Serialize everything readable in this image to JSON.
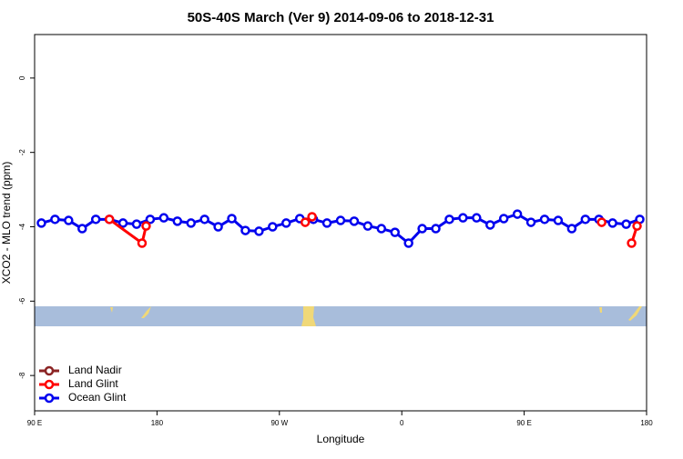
{
  "chart_data": {
    "type": "line",
    "title": "50S-40S March (Ver 9)   2014-09-06 to 2018-12-31",
    "x_label": "Longitude",
    "y_label": "XCO2 - MLO trend (ppm)",
    "xlim": [
      90,
      540
    ],
    "ylim": [
      -8.95,
      1.17
    ],
    "xticks": [
      {
        "value": 90,
        "label": "90 E"
      },
      {
        "value": 180,
        "label": "180"
      },
      {
        "value": 270,
        "label": "90 W"
      },
      {
        "value": 360,
        "label": "0"
      },
      {
        "value": 450,
        "label": "90 E"
      },
      {
        "value": 540,
        "label": "180"
      }
    ],
    "yticks": [
      0,
      -2,
      -4,
      -6,
      -8
    ],
    "legend": "bottom-left",
    "series": [
      {
        "name": "Land Nadir",
        "color": "#8b2323",
        "x": [],
        "values": []
      },
      {
        "name": "Land Glint",
        "color": "#ff0000",
        "x": [
          145,
          169,
          172,
          null,
          289,
          294,
          null,
          507,
          null,
          529,
          533
        ],
        "values": [
          -3.8,
          -4.44,
          -3.98,
          null,
          -3.88,
          -3.73,
          null,
          -3.88,
          null,
          -4.44,
          -3.98
        ]
      },
      {
        "name": "Ocean Glint",
        "color": "#0000ee",
        "x": [
          95,
          105,
          115,
          125,
          135,
          145,
          155,
          165,
          175,
          185,
          195,
          205,
          215,
          225,
          235,
          245,
          255,
          265,
          275,
          285,
          295,
          305,
          315,
          325,
          335,
          345,
          355,
          365,
          375,
          385,
          395,
          405,
          415,
          425,
          435,
          445,
          455,
          465,
          475,
          485,
          495,
          505,
          515,
          525,
          535
        ],
        "values": [
          -3.9,
          -3.8,
          -3.83,
          -4.05,
          -3.8,
          -3.8,
          -3.9,
          -3.93,
          -3.8,
          -3.76,
          -3.85,
          -3.9,
          -3.8,
          -4.0,
          -3.78,
          -4.1,
          -4.12,
          -4.0,
          -3.9,
          -3.78,
          -3.8,
          -3.9,
          -3.83,
          -3.85,
          -3.98,
          -4.05,
          -4.15,
          -4.44,
          -4.05,
          -4.05,
          -3.8,
          -3.76,
          -3.76,
          -3.95,
          -3.78,
          -3.66,
          -3.88,
          -3.8,
          -3.83,
          -4.05,
          -3.8,
          -3.8,
          -3.9,
          -3.93,
          -3.8
        ]
      }
    ]
  }
}
